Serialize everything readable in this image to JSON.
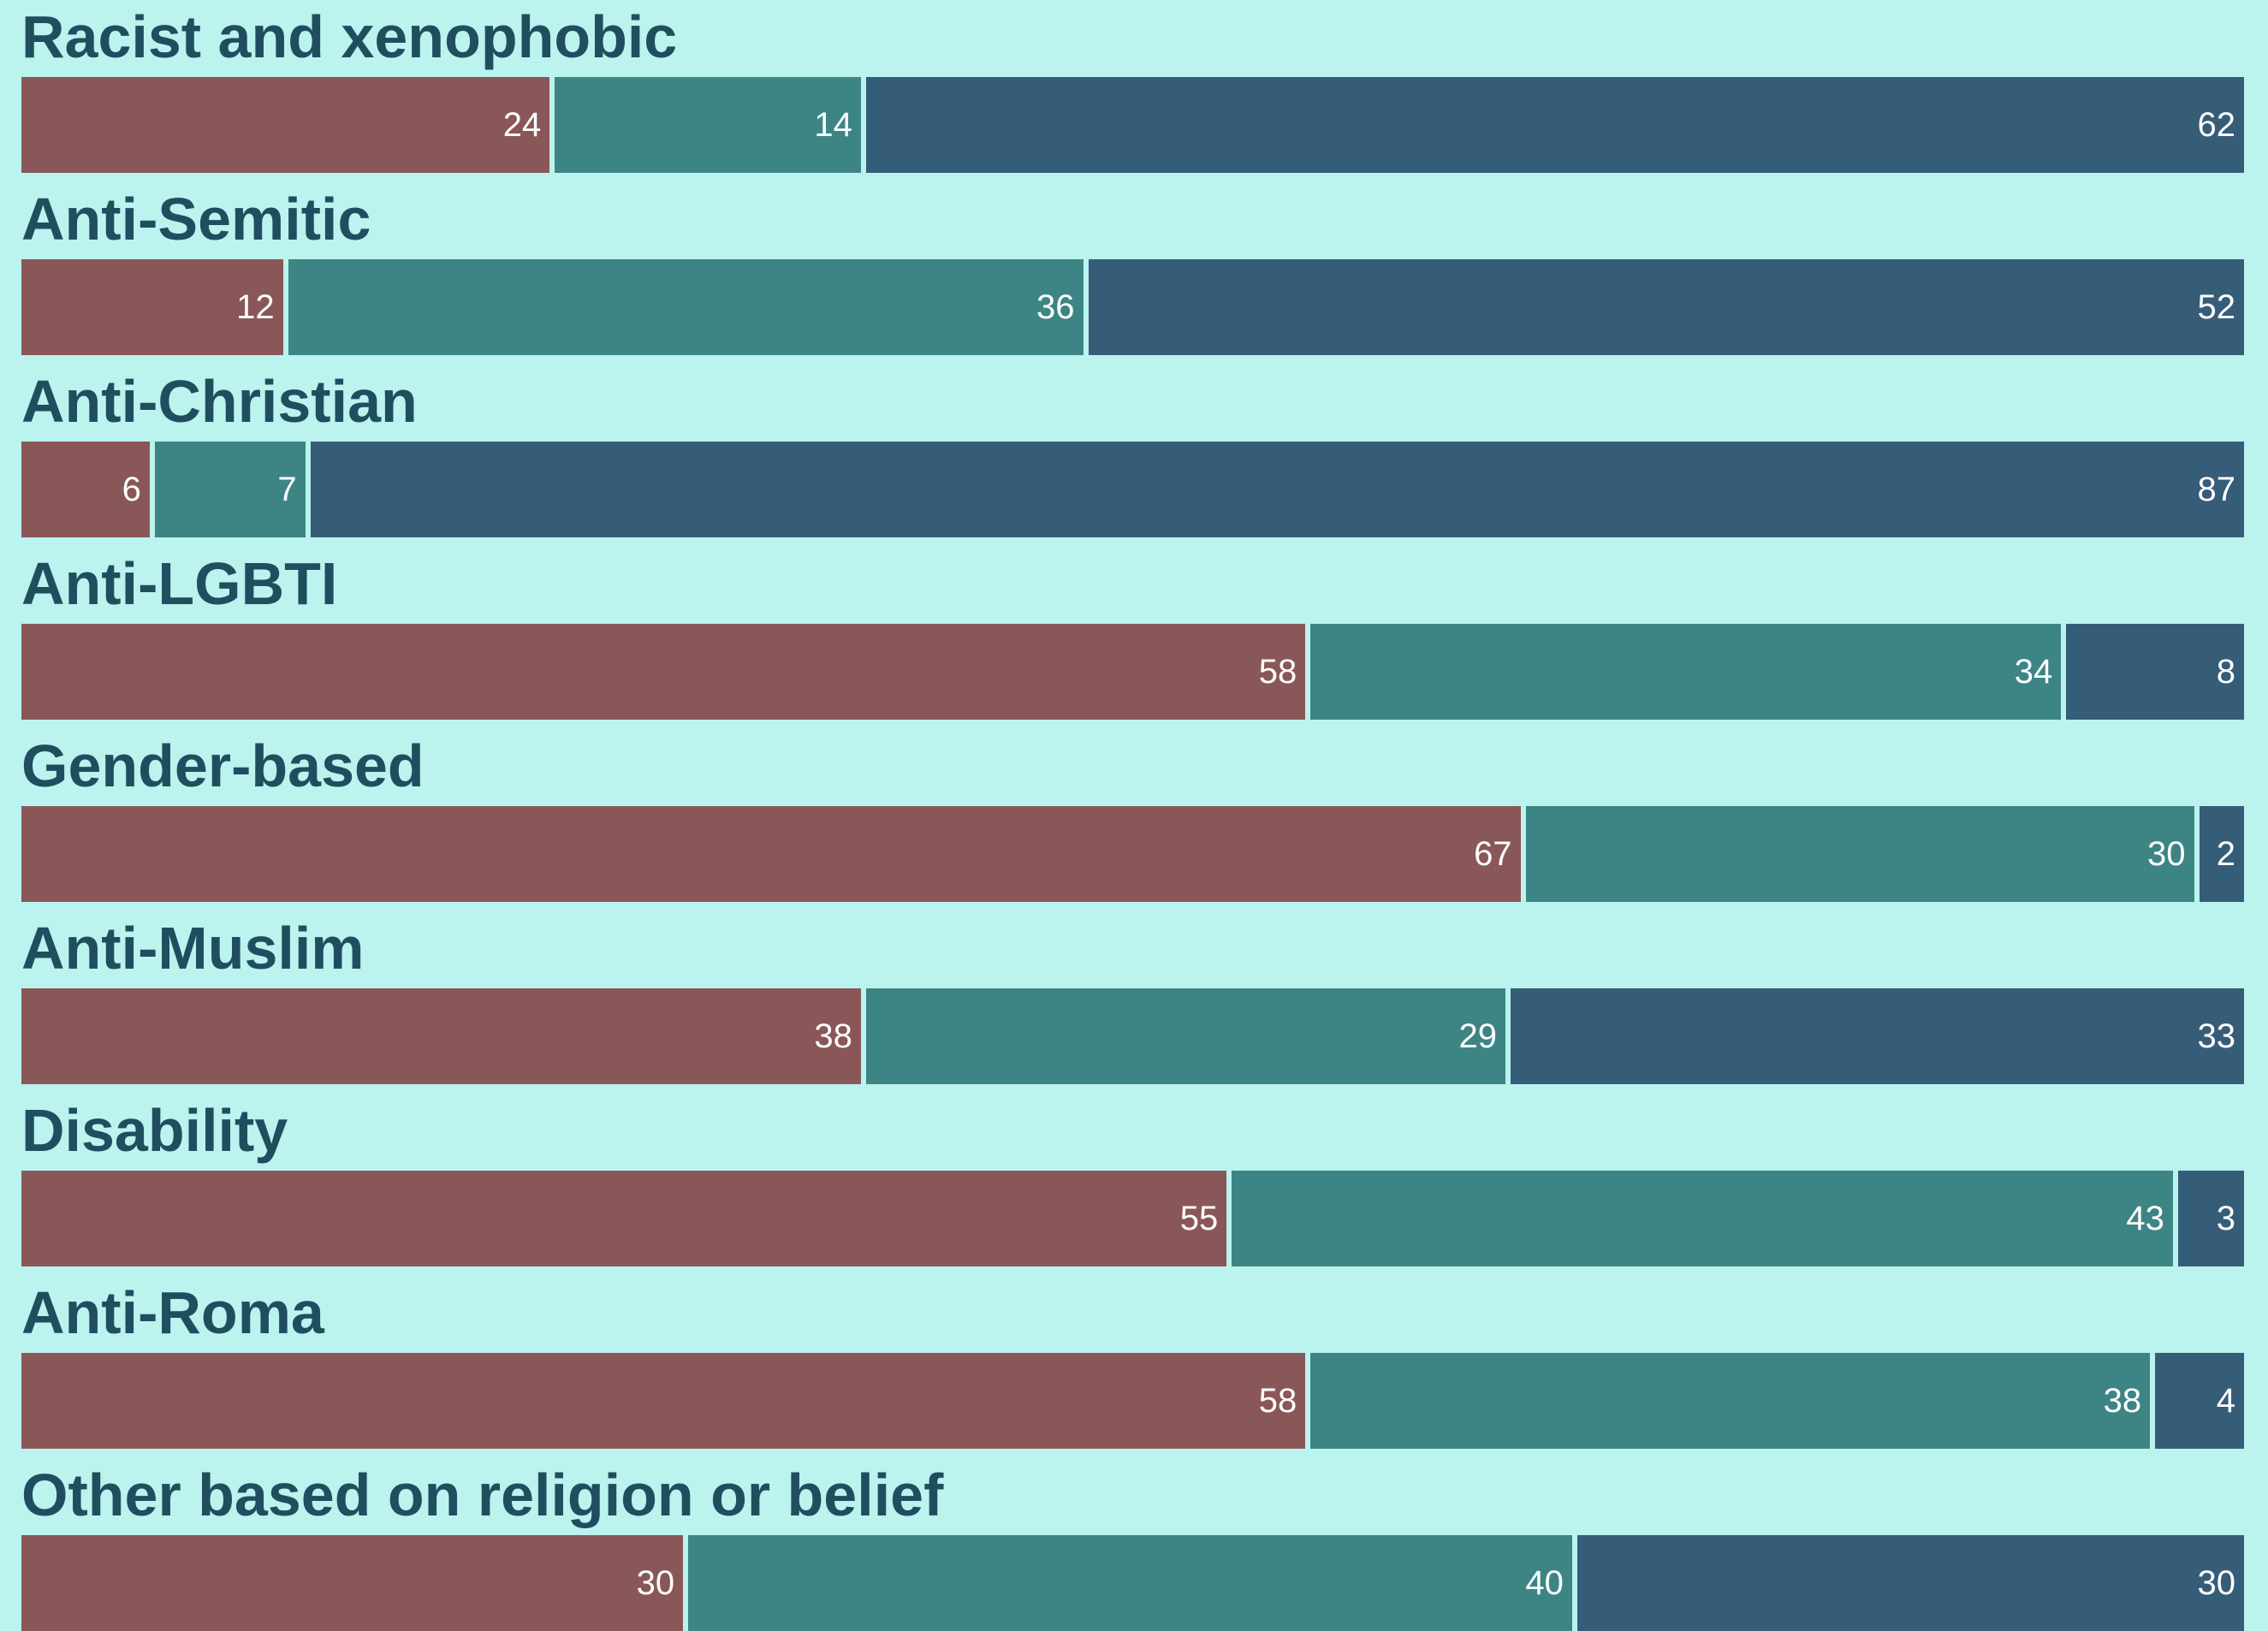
{
  "chart_data": {
    "type": "bar",
    "orientation": "horizontal-stacked-100",
    "categories": [
      "Racist and xenophobic",
      "Anti-Semitic",
      "Anti-Christian",
      "Anti-LGBTI",
      "Gender-based",
      "Anti-Muslim",
      "Disability",
      "Anti-Roma",
      "Other based on religion or belief"
    ],
    "series": [
      {
        "color": "#8a5758",
        "values": [
          24,
          12,
          6,
          58,
          67,
          38,
          55,
          58,
          30
        ]
      },
      {
        "color": "#3d8585",
        "values": [
          14,
          36,
          7,
          34,
          30,
          29,
          43,
          38,
          40
        ]
      },
      {
        "color": "#365d78",
        "values": [
          62,
          52,
          87,
          8,
          2,
          33,
          3,
          4,
          30
        ]
      }
    ],
    "xlim": [
      0,
      100
    ],
    "grid": false,
    "legend": "none"
  }
}
